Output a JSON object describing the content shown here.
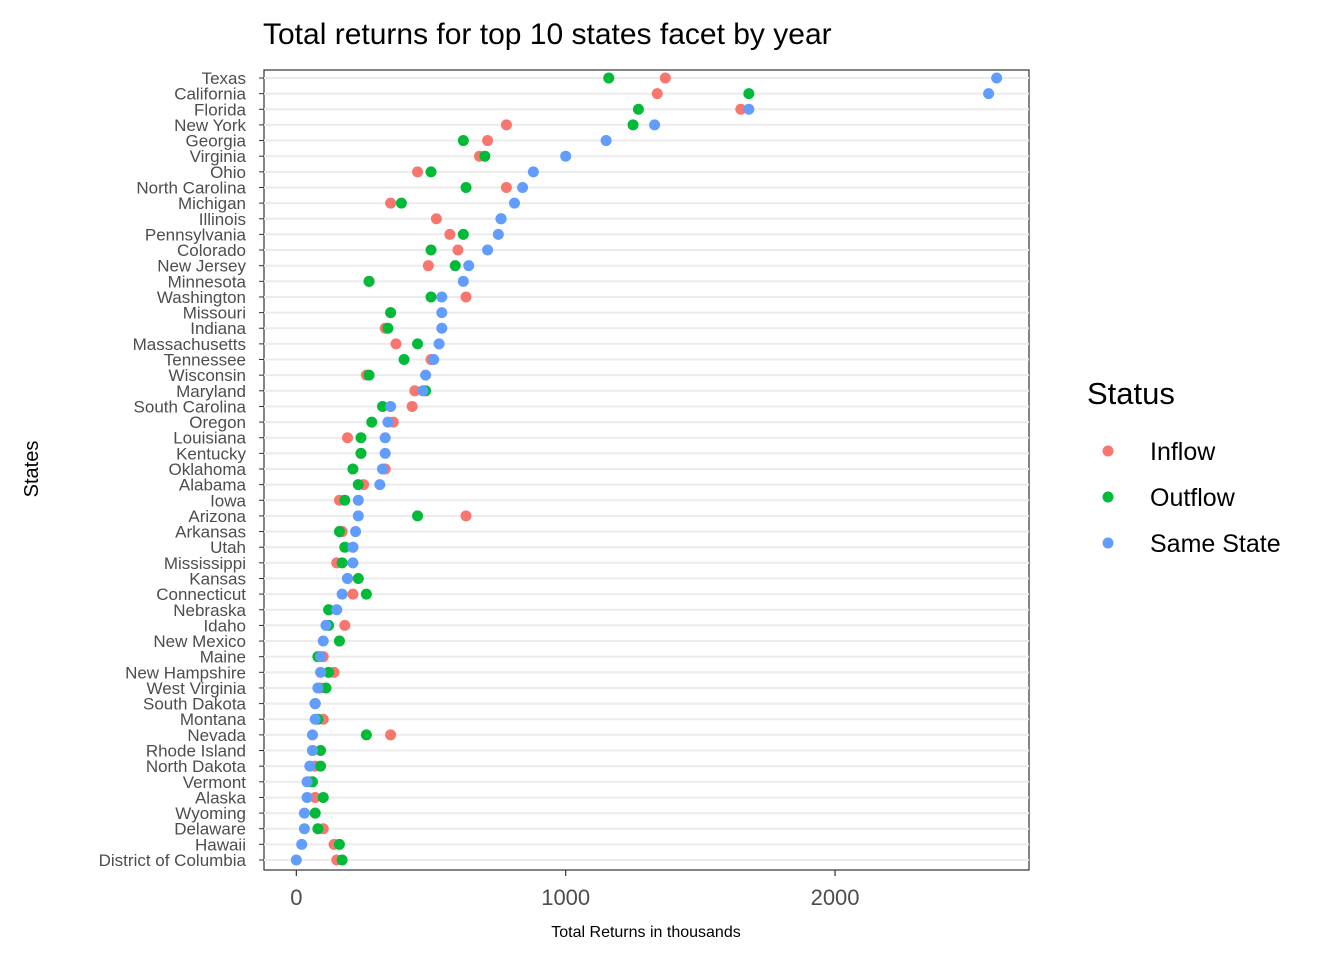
{
  "chart_data": {
    "type": "scatter",
    "title": "Total returns for top 10 states facet by year",
    "xlabel": "Total Returns in thousands",
    "ylabel": "States",
    "xlim": [
      -120,
      2720
    ],
    "x_ticks": [
      0,
      1000,
      2000
    ],
    "x_tick_labels": [
      "0",
      "1000",
      "2000"
    ],
    "grid": "horizontal",
    "legend": {
      "title": "Status",
      "position": "right"
    },
    "categories": [
      "Texas",
      "California",
      "Florida",
      "New York",
      "Georgia",
      "Virginia",
      "Ohio",
      "North Carolina",
      "Michigan",
      "Illinois",
      "Pennsylvania",
      "Colorado",
      "New Jersey",
      "Minnesota",
      "Washington",
      "Missouri",
      "Indiana",
      "Massachusetts",
      "Tennessee",
      "Wisconsin",
      "Maryland",
      "South Carolina",
      "Oregon",
      "Louisiana",
      "Kentucky",
      "Oklahoma",
      "Alabama",
      "Iowa",
      "Arizona",
      "Arkansas",
      "Utah",
      "Mississippi",
      "Kansas",
      "Connecticut",
      "Nebraska",
      "Idaho",
      "New Mexico",
      "Maine",
      "New Hampshire",
      "West Virginia",
      "South Dakota",
      "Montana",
      "Nevada",
      "Rhode Island",
      "North Dakota",
      "Vermont",
      "Alaska",
      "Wyoming",
      "Delaware",
      "Hawaii",
      "District of Columbia"
    ],
    "series": [
      {
        "name": "Inflow",
        "color": "#F8766D",
        "values": [
          1370,
          1340,
          1650,
          780,
          710,
          680,
          450,
          780,
          350,
          520,
          570,
          600,
          490,
          270,
          630,
          350,
          330,
          370,
          500,
          260,
          440,
          430,
          360,
          190,
          240,
          330,
          250,
          160,
          630,
          170,
          210,
          150,
          190,
          210,
          120,
          180,
          160,
          100,
          140,
          90,
          70,
          100,
          350,
          60,
          70,
          50,
          70,
          70,
          100,
          140,
          150
        ]
      },
      {
        "name": "Outflow",
        "color": "#00BA38",
        "values": [
          1160,
          1680,
          1270,
          1250,
          620,
          700,
          500,
          630,
          390,
          760,
          620,
          500,
          590,
          270,
          500,
          350,
          340,
          450,
          400,
          270,
          480,
          320,
          280,
          240,
          240,
          210,
          230,
          180,
          450,
          160,
          180,
          170,
          230,
          260,
          120,
          120,
          160,
          80,
          120,
          110,
          70,
          80,
          260,
          90,
          90,
          60,
          100,
          70,
          80,
          160,
          170
        ]
      },
      {
        "name": "Same State",
        "color": "#619CFF",
        "values": [
          2600,
          2570,
          1680,
          1330,
          1150,
          1000,
          880,
          840,
          810,
          760,
          750,
          710,
          640,
          620,
          540,
          540,
          540,
          530,
          510,
          480,
          470,
          350,
          340,
          330,
          330,
          320,
          310,
          230,
          230,
          220,
          210,
          210,
          190,
          170,
          150,
          110,
          100,
          90,
          90,
          80,
          70,
          70,
          60,
          60,
          50,
          40,
          40,
          30,
          30,
          20,
          0
        ]
      }
    ]
  }
}
